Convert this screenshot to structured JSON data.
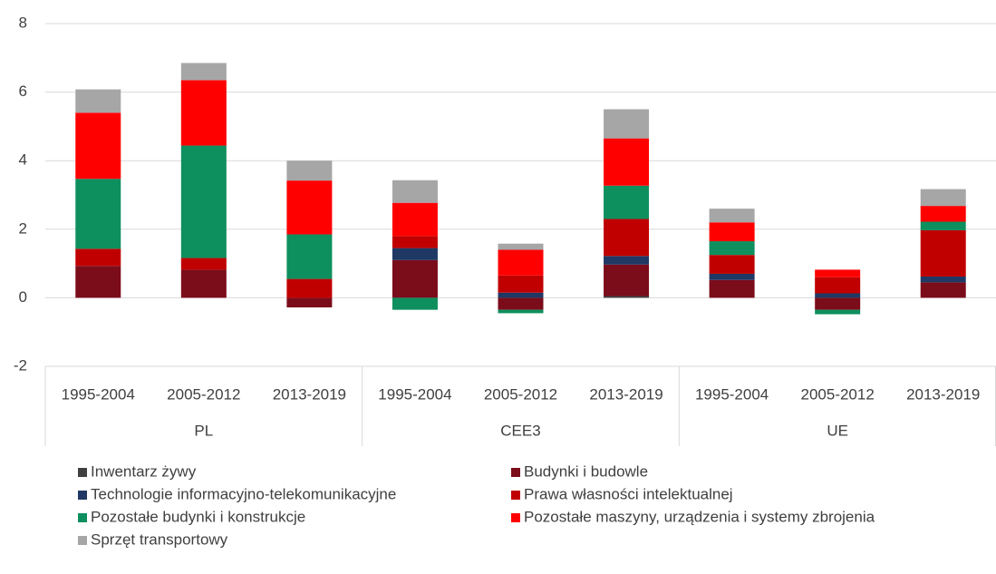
{
  "chart_data": {
    "type": "stacked-bar",
    "groups": [
      {
        "name": "PL",
        "categories": [
          "1995-2004",
          "2005-2012",
          "2013-2019"
        ]
      },
      {
        "name": "CEE3",
        "categories": [
          "1995-2004",
          "2005-2012",
          "2013-2019"
        ]
      },
      {
        "name": "UE",
        "categories": [
          "1995-2004",
          "2005-2012",
          "2013-2019"
        ]
      }
    ],
    "series": [
      {
        "name": "Inwentarz żywy",
        "color": "#404040",
        "values": [
          0,
          0,
          0,
          0,
          0,
          0.05,
          0,
          0,
          0
        ]
      },
      {
        "name": "Budynki i budowle",
        "color": "#7b0c1a",
        "values": [
          0.93,
          0.82,
          -0.28,
          1.1,
          -0.35,
          0.92,
          0.52,
          -0.35,
          0.45
        ]
      },
      {
        "name": "Technologie informacyjno-telekomunikacyjne",
        "color": "#1f3864",
        "values": [
          0,
          0,
          0,
          0.35,
          0.15,
          0.25,
          0.18,
          0.13,
          0.17
        ]
      },
      {
        "name": "Prawa własności intelektualnej",
        "color": "#c00000",
        "values": [
          0.5,
          0.34,
          0.55,
          0.35,
          0.5,
          1.08,
          0.55,
          0.47,
          1.35
        ]
      },
      {
        "name": "Pozostałe budynki i konstrukcje",
        "color": "#0e8f5e",
        "values": [
          2.04,
          3.28,
          1.3,
          -0.35,
          -0.1,
          0.97,
          0.4,
          -0.13,
          0.25
        ]
      },
      {
        "name": "Pozostałe maszyny, urządzenia i systemy zbrojenia",
        "color": "#ff0000",
        "values": [
          1.93,
          1.91,
          1.57,
          0.97,
          0.75,
          1.38,
          0.55,
          0.22,
          0.46
        ]
      },
      {
        "name": "Sprzęt transportowy",
        "color": "#a6a6a6",
        "values": [
          0.68,
          0.5,
          0.58,
          0.66,
          0.18,
          0.85,
          0.4,
          0,
          0.49
        ]
      }
    ],
    "ylim": [
      -2,
      8
    ],
    "yticks": [
      -2,
      0,
      2,
      4,
      6,
      8
    ],
    "grid": true
  }
}
